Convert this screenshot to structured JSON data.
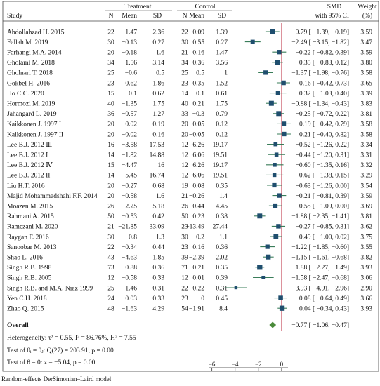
{
  "caption": "Random-effects DerSimonian–Laird model",
  "chart_data": {
    "type": "forest",
    "header": {
      "treatment": "Treatment",
      "control": "Control",
      "study": "Study",
      "n": "N",
      "mean": "Mean",
      "sd": "SD",
      "smd_line1": "SMD",
      "smd_line2": "with 95% CI",
      "weight_line1": "Weight",
      "weight_line2": "(%)"
    },
    "x_ticks": [
      -6,
      -4,
      -2,
      0
    ],
    "x_tick_labels": [
      "−6",
      "−4",
      "−2",
      "0"
    ],
    "xlim": [
      -6.1,
      0.55
    ],
    "reference_line": 0,
    "studies": [
      {
        "study": "Abdollahzad H. 2015",
        "t_n": "22",
        "t_mean": "−1.47",
        "t_sd": "2.36",
        "c_n": "22",
        "c_mean": "0.09",
        "c_sd": "1.39",
        "smd": -0.79,
        "lo": -1.39,
        "hi": -0.19,
        "ci_text": "−0.79 [ −1.39, −0.19]",
        "weight": "3.59"
      },
      {
        "study": "Fallah M. 2019",
        "t_n": "30",
        "t_mean": "−0.13",
        "t_sd": "0.27",
        "c_n": "30",
        "c_mean": "0.55",
        "c_sd": "0.27",
        "smd": -2.49,
        "lo": -3.15,
        "hi": -1.82,
        "ci_text": "−2.49 [ −3.15, −1.82]",
        "weight": "3.47"
      },
      {
        "study": "Farhangi M.A. 2014",
        "t_n": "20",
        "t_mean": "−0.18",
        "t_sd": "1.6",
        "c_n": "21",
        "c_mean": "0.16",
        "c_sd": "1.47",
        "smd": -0.22,
        "lo": -0.82,
        "hi": 0.39,
        "ci_text": "−0.22 [ −0.82, 0.39]",
        "weight": "3.59"
      },
      {
        "study": "Gholami M. 2018",
        "t_n": "34",
        "t_mean": "−1.56",
        "t_sd": "3.14",
        "c_n": "34",
        "c_mean": "−0.36",
        "c_sd": "3.56",
        "smd": -0.35,
        "lo": -0.83,
        "hi": 0.12,
        "ci_text": "−0.35 [ −0.83, 0.12]",
        "weight": "3.80"
      },
      {
        "study": "Gholnari T. 2018",
        "t_n": "25",
        "t_mean": "−0.6",
        "t_sd": "0.5",
        "c_n": "25",
        "c_mean": "0.5",
        "c_sd": "1",
        "smd": -1.37,
        "lo": -1.98,
        "hi": -0.76,
        "ci_text": "−1.37 [ −1.98, −0.76]",
        "weight": "3.58"
      },
      {
        "study": "Gokbel H. 2016",
        "t_n": "23",
        "t_mean": "0.62",
        "t_sd": "1.86",
        "c_n": "23",
        "c_mean": "0.35",
        "c_sd": "1.52",
        "smd": 0.16,
        "lo": -0.42,
        "hi": 0.73,
        "ci_text": "0.16 [ −0.42, 0.73]",
        "weight": "3.65"
      },
      {
        "study": "Ho C.C. 2020",
        "t_n": "15",
        "t_mean": "−0.1",
        "t_sd": "0.62",
        "c_n": "14",
        "c_mean": "0.1",
        "c_sd": "0.61",
        "smd": -0.32,
        "lo": -1.03,
        "hi": 0.4,
        "ci_text": "−0.32 [ −1.03, 0.40]",
        "weight": "3.39"
      },
      {
        "study": "Hormozi M. 2019",
        "t_n": "40",
        "t_mean": "−1.35",
        "t_sd": "1.75",
        "c_n": "40",
        "c_mean": "0.21",
        "c_sd": "1.75",
        "smd": -0.88,
        "lo": -1.34,
        "hi": -0.43,
        "ci_text": "−0.88 [ −1.34, −0.43]",
        "weight": "3.83"
      },
      {
        "study": "Jahangard L. 2019",
        "t_n": "36",
        "t_mean": "−0.57",
        "t_sd": "1.27",
        "c_n": "33",
        "c_mean": "−0.3",
        "c_sd": "0.79",
        "smd": -0.25,
        "lo": -0.72,
        "hi": 0.22,
        "ci_text": "−0.25 [ −0.72, 0.22]",
        "weight": "3.81"
      },
      {
        "study": "Kaikkonen J. 1997 I",
        "t_n": "20",
        "t_mean": "−0.02",
        "t_sd": "0.19",
        "c_n": "20",
        "c_mean": "−0.05",
        "c_sd": "0.12",
        "smd": 0.19,
        "lo": -0.42,
        "hi": 0.79,
        "ci_text": "0.19 [ −0.42, 0.79]",
        "weight": "3.58"
      },
      {
        "study": "Kaikkonen J. 1997 II",
        "t_n": "20",
        "t_mean": "−0.02",
        "t_sd": "0.16",
        "c_n": "20",
        "c_mean": "−0.05",
        "c_sd": "0.12",
        "smd": 0.21,
        "lo": -0.4,
        "hi": 0.82,
        "ci_text": "0.21 [ −0.40, 0.82]",
        "weight": "3.58"
      },
      {
        "study": "Lee B.J. 2012 Ⅲ",
        "t_n": "16",
        "t_mean": "−3.58",
        "t_sd": "17.53",
        "c_n": "12",
        "c_mean": "6.26",
        "c_sd": "19.17",
        "smd": -0.52,
        "lo": -1.26,
        "hi": 0.22,
        "ci_text": "−0.52 [ −1.26, 0.22]",
        "weight": "3.34"
      },
      {
        "study": "Lee B.J. 2012 I",
        "t_n": "14",
        "t_mean": "−1.82",
        "t_sd": "14.88",
        "c_n": "12",
        "c_mean": "6.06",
        "c_sd": "19.51",
        "smd": -0.44,
        "lo": -1.2,
        "hi": 0.31,
        "ci_text": "−0.44 [ −1.20, 0.31]",
        "weight": "3.31"
      },
      {
        "study": "Lee B.J. 2012 Ⅳ",
        "t_n": "15",
        "t_mean": "−4.47",
        "t_sd": "16",
        "c_n": "12",
        "c_mean": "6.26",
        "c_sd": "19.17",
        "smd": -0.6,
        "lo": -1.35,
        "hi": 0.16,
        "ci_text": "−0.60 [ −1.35, 0.16]",
        "weight": "3.32"
      },
      {
        "study": "Lee B.J. 2012 II",
        "t_n": "14",
        "t_mean": "−5.45",
        "t_sd": "16.74",
        "c_n": "12",
        "c_mean": "6.06",
        "c_sd": "19.51",
        "smd": -0.62,
        "lo": -1.38,
        "hi": 0.15,
        "ci_text": "−0.62 [ −1.38, 0.15]",
        "weight": "3.29"
      },
      {
        "study": "Liu H.T. 2016",
        "t_n": "20",
        "t_mean": "−0.27",
        "t_sd": "0.68",
        "c_n": "19",
        "c_mean": "0.08",
        "c_sd": "0.35",
        "smd": -0.63,
        "lo": -1.26,
        "hi": 0.0,
        "ci_text": "−0.63 [ −1.26, 0.00]",
        "weight": "3.54"
      },
      {
        "study": "Majid Mohammadshahi F.F. 2014",
        "t_n": "20",
        "t_mean": "−0.58",
        "t_sd": "1.6",
        "c_n": "21",
        "c_mean": "−0.26",
        "c_sd": "1.4",
        "smd": -0.21,
        "lo": -0.81,
        "hi": 0.39,
        "ci_text": "−0.21 [ −0.81, 0.39]",
        "weight": "3.59"
      },
      {
        "study": "Moazen M. 2015",
        "t_n": "26",
        "t_mean": "−2.25",
        "t_sd": "5.18",
        "c_n": "26",
        "c_mean": "0.44",
        "c_sd": "4.45",
        "smd": -0.55,
        "lo": -1.09,
        "hi": 0.0,
        "ci_text": "−0.55 [ −1.09, 0.00]",
        "weight": "3.69"
      },
      {
        "study": "Rahmani A. 2015",
        "t_n": "50",
        "t_mean": "−0.53",
        "t_sd": "0.42",
        "c_n": "50",
        "c_mean": "0.23",
        "c_sd": "0.38",
        "smd": -1.88,
        "lo": -2.35,
        "hi": -1.41,
        "ci_text": "−1.88 [ −2.35, −1.41]",
        "weight": "3.81"
      },
      {
        "study": "Ramezani M. 2020",
        "t_n": "21",
        "t_mean": "−21.85",
        "t_sd": "33.09",
        "c_n": "23",
        "c_mean": "−13.49",
        "c_sd": "27.44",
        "smd": -0.27,
        "lo": -0.85,
        "hi": 0.31,
        "ci_text": "−0.27 [ −0.85, 0.31]",
        "weight": "3.62"
      },
      {
        "study": "Raygan F. 2016",
        "t_n": "30",
        "t_mean": "−0.8",
        "t_sd": "1.3",
        "c_n": "30",
        "c_mean": "−0.2",
        "c_sd": "1.1",
        "smd": -0.49,
        "lo": -1.0,
        "hi": 0.02,
        "ci_text": "−0.49 [ −1.00, 0.02]",
        "weight": "3.75"
      },
      {
        "study": "Sanoobar M. 2013",
        "t_n": "22",
        "t_mean": "−0.34",
        "t_sd": "0.44",
        "c_n": "23",
        "c_mean": "0.16",
        "c_sd": "0.36",
        "smd": -1.22,
        "lo": -1.85,
        "hi": -0.6,
        "ci_text": "−1.22 [ −1.85, −0.60]",
        "weight": "3.55"
      },
      {
        "study": "Shao L. 2016",
        "t_n": "43",
        "t_mean": "−4.63",
        "t_sd": "1.85",
        "c_n": "39",
        "c_mean": "−2.39",
        "c_sd": "2.02",
        "smd": -1.15,
        "lo": -1.61,
        "hi": -0.68,
        "ci_text": "−1.15 [ −1.61, −0.68]",
        "weight": "3.82"
      },
      {
        "study": "Singh R.B. 1998",
        "t_n": "73",
        "t_mean": "−0.88",
        "t_sd": "0.36",
        "c_n": "71",
        "c_mean": "−0.21",
        "c_sd": "0.35",
        "smd": -1.88,
        "lo": -2.27,
        "hi": -1.49,
        "ci_text": "−1.88 [ −2.27, −1.49]",
        "weight": "3.93"
      },
      {
        "study": "Singh R.B. 2005",
        "t_n": "12",
        "t_mean": "−0.58",
        "t_sd": "0.33",
        "c_n": "12",
        "c_mean": "0.01",
        "c_sd": "0.39",
        "smd": -1.58,
        "lo": -2.47,
        "hi": -0.68,
        "ci_text": "−1.58 [ −2.47, −0.68]",
        "weight": "3.06"
      },
      {
        "study": "Singh R.B. and M.A. Niaz 1999",
        "t_n": "25",
        "t_mean": "−1.46",
        "t_sd": "0.31",
        "c_n": "22",
        "c_mean": "−0.22",
        "c_sd": "0.31",
        "smd": -3.93,
        "lo": -4.91,
        "hi": -2.96,
        "ci_text": "−3.93 [ −4.91, −2.96]",
        "weight": "2.90"
      },
      {
        "study": "Yen C.H. 2018",
        "t_n": "24",
        "t_mean": "−0.03",
        "t_sd": "0.33",
        "c_n": "23",
        "c_mean": "0",
        "c_sd": "0.45",
        "smd": -0.08,
        "lo": -0.64,
        "hi": 0.49,
        "ci_text": "−0.08 [ −0.64, 0.49]",
        "weight": "3.66"
      },
      {
        "study": "Zhao Q. 2015",
        "t_n": "48",
        "t_mean": "−1.63",
        "t_sd": "4.29",
        "c_n": "54",
        "c_mean": "−1.91",
        "c_sd": "8.4",
        "smd": 0.04,
        "lo": -0.34,
        "hi": 0.43,
        "ci_text": "0.04 [ −0.34, 0.43]",
        "weight": "3.93"
      }
    ],
    "overall": {
      "label": "Overall",
      "smd": -0.77,
      "lo": -1.06,
      "hi": -0.47,
      "ci_text": "−0.77 [ −1.06, −0.47]"
    },
    "stats": [
      "Heterogeneity: τ² = 0.55, I² = 86.76%, H² = 7.55",
      "Test of θᵢ = θⱼ: Q(27) = 203.91, p = 0.00",
      "Test of θ = 0: z = −5.04, p = 0.00"
    ],
    "colors": {
      "marker": "#1f4e6e",
      "ci_line": "#3a7d5a",
      "overall": "#4a8a3a",
      "reference": "#c0394b",
      "frame": "#444444"
    }
  }
}
